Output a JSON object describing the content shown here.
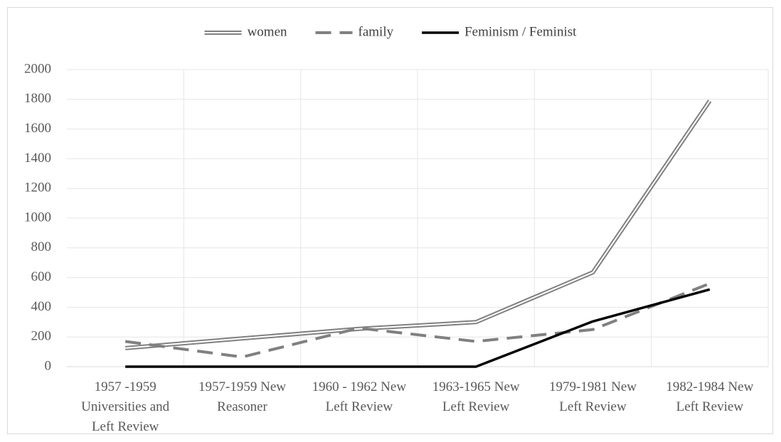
{
  "chart_data": {
    "type": "line",
    "categories": [
      "1957 -1959 Universities and Left Review",
      "1957-1959 New Reasoner",
      "1960 - 1962 New Left Review",
      "1963-1965 New Left Review",
      "1979-1981 New Left Review",
      "1982-1984 New Left Review"
    ],
    "series": [
      {
        "name": "women",
        "color": "#808080",
        "style": "double",
        "values": [
          125,
          190,
          255,
          300,
          635,
          1790
        ]
      },
      {
        "name": "family",
        "color": "#808080",
        "style": "dashed",
        "values": [
          170,
          65,
          260,
          170,
          250,
          560
        ]
      },
      {
        "name": "Feminism / Feminist",
        "color": "#000000",
        "style": "solid",
        "values": [
          0,
          0,
          0,
          0,
          305,
          520
        ]
      }
    ],
    "ylim": [
      0,
      2000
    ],
    "yticks": [
      0,
      200,
      400,
      600,
      800,
      1000,
      1200,
      1400,
      1600,
      1800,
      2000
    ],
    "grid": true,
    "legend": "top"
  }
}
